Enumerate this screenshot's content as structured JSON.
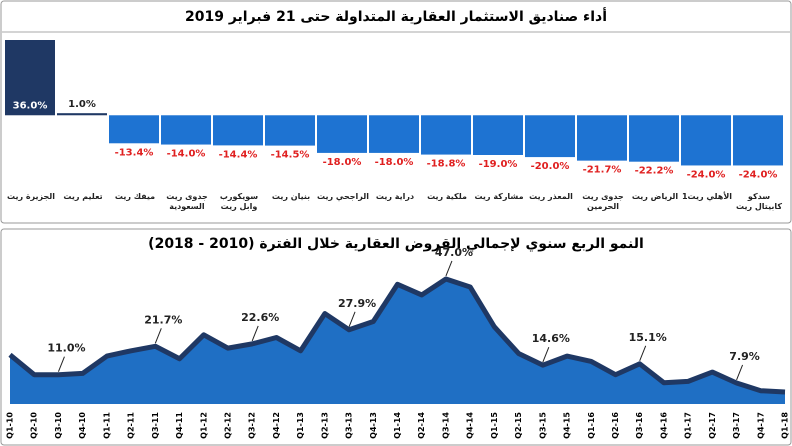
{
  "chart_data": [
    {
      "type": "bar",
      "title": "أداء صناديق الاستثمار العقارية المتداولة حتى 21 فبراير 2019",
      "categories": [
        "الجزيرة ريت",
        "تعليم ريت",
        "ميفك ريت",
        "جدوى ريت السعودية",
        "سويكورب وابل ريت",
        "بنيان ريت",
        "الراجحي ريت",
        "دراية ريت",
        "ملكية ريت",
        "مشاركة ريت",
        "المعذر ريت",
        "جدوى ريت الحرمين",
        "الرياض ريت",
        "الأهلي ريت1",
        "سدكو كابيتال ريت"
      ],
      "values": [
        36.0,
        1.0,
        -13.4,
        -14.0,
        -14.4,
        -14.5,
        -18.0,
        -18.0,
        -18.8,
        -19.0,
        -20.0,
        -21.7,
        -22.2,
        -24.0,
        -24.0
      ],
      "value_labels": [
        "36.0%",
        "1.0%",
        "-13.4%",
        "-14.0%",
        "-14.4%",
        "-14.5%",
        "-18.0%",
        "-18.0%",
        "-18.8%",
        "-19.0%",
        "-20.0%",
        "-21.7%",
        "-22.2%",
        "-24.0%",
        "-24.0%"
      ],
      "colors": [
        "#1f3864",
        "#1f3864",
        "#1e73d2",
        "#1e73d2",
        "#1e73d2",
        "#1e73d2",
        "#1e73d2",
        "#1e73d2",
        "#1e73d2",
        "#1e73d2",
        "#1e73d2",
        "#1e73d2",
        "#1e73d2",
        "#1e73d2",
        "#1e73d2"
      ],
      "ylim": [
        -30,
        36
      ]
    },
    {
      "type": "area",
      "title": "النمو الربع سنوي لإجمالي القروض العقارية خلال الفترة (2010 - 2018)",
      "categories": [
        "Q1-10",
        "Q2-10",
        "Q3-10",
        "Q4-10",
        "Q1-11",
        "Q2-11",
        "Q3-11",
        "Q4-11",
        "Q1-12",
        "Q2-12",
        "Q3-12",
        "Q4-12",
        "Q1-13",
        "Q2-13",
        "Q3-13",
        "Q4-13",
        "Q1-14",
        "Q2-14",
        "Q3-14",
        "Q4-14",
        "Q1-15",
        "Q2-15",
        "Q3-15",
        "Q4-15",
        "Q1-16",
        "Q2-16",
        "Q3-16",
        "Q4-16",
        "Q1-17",
        "Q2-17",
        "Q3-17",
        "Q4-17",
        "Q1-18"
      ],
      "values": [
        18.5,
        11,
        11.0,
        11.5,
        18,
        20,
        21.7,
        17,
        26,
        21,
        22.6,
        25,
        20,
        34,
        27.9,
        31,
        45,
        41,
        47.0,
        44,
        29,
        19,
        14.6,
        18,
        16,
        11,
        15.1,
        8,
        8.5,
        12,
        7.9,
        5,
        4.5
      ],
      "value_labels": [
        null,
        null,
        "11.0%",
        null,
        null,
        null,
        "21.7%",
        null,
        null,
        null,
        "22.6%",
        null,
        null,
        null,
        "27.9%",
        null,
        null,
        null,
        "47.0%",
        null,
        null,
        null,
        "14.6%",
        null,
        null,
        null,
        "15.1%",
        null,
        null,
        null,
        "7.9%",
        null,
        null
      ],
      "color": "#1f6fc4",
      "line_color": "#1f3864",
      "ylim": [
        0,
        50
      ]
    }
  ]
}
